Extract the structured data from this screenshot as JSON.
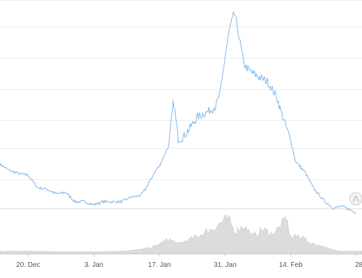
{
  "chart_data": {
    "type": "line",
    "title": "",
    "xlabel": "",
    "ylabel": "",
    "grid": true,
    "x_tick_labels": [
      "20. Dec",
      "3. Jan",
      "17. Jan",
      "31. Jan",
      "14. Feb",
      "28."
    ],
    "x_tick_dates": [
      "2022-12-20",
      "2023-01-03",
      "2023-01-17",
      "2023-01-31",
      "2023-02-14",
      "2023-02-28"
    ],
    "xlim": [
      "2022-12-14",
      "2023-02-28"
    ],
    "ylim": [
      0,
      100
    ],
    "series": [
      {
        "kind": "price",
        "x": [
          "2022-12-14",
          "2022-12-16",
          "2022-12-18",
          "2022-12-20",
          "2022-12-22",
          "2022-12-24",
          "2022-12-26",
          "2022-12-28",
          "2022-12-30",
          "2023-01-01",
          "2023-01-03",
          "2023-01-05",
          "2023-01-07",
          "2023-01-09",
          "2023-01-11",
          "2023-01-13",
          "2023-01-14",
          "2023-01-16",
          "2023-01-17",
          "2023-01-19",
          "2023-01-20",
          "2023-01-21",
          "2023-01-22",
          "2023-01-23",
          "2023-01-25",
          "2023-01-27",
          "2023-01-29",
          "2023-01-30",
          "2023-01-31",
          "2023-02-01",
          "2023-02-02",
          "2023-02-03",
          "2023-02-04",
          "2023-02-05",
          "2023-02-07",
          "2023-02-09",
          "2023-02-11",
          "2023-02-12",
          "2023-02-14",
          "2023-02-15",
          "2023-02-17",
          "2023-02-19",
          "2023-02-21",
          "2023-02-23",
          "2023-02-25",
          "2023-02-28"
        ],
        "y": [
          47.5,
          45.5,
          44.5,
          44,
          40,
          39.5,
          38,
          38.5,
          35.5,
          35.5,
          34.5,
          35.5,
          35.5,
          35.5,
          37,
          37.5,
          39.5,
          45,
          47,
          53.5,
          68,
          55.5,
          56,
          58,
          62.5,
          64,
          66,
          70.5,
          82,
          91,
          96,
          88,
          79.5,
          77.5,
          75.5,
          74,
          69,
          64,
          55,
          48.5,
          45,
          39.5,
          36,
          33.5,
          34,
          32
        ]
      },
      {
        "kind": "volume",
        "x": [
          "2022-12-14",
          "2022-12-20",
          "2022-12-27",
          "2023-01-03",
          "2023-01-08",
          "2023-01-12",
          "2023-01-14",
          "2023-01-16",
          "2023-01-17",
          "2023-01-19",
          "2023-01-21",
          "2023-01-23",
          "2023-01-25",
          "2023-01-27",
          "2023-01-29",
          "2023-01-31",
          "2023-02-01",
          "2023-02-02",
          "2023-02-04",
          "2023-02-06",
          "2023-02-08",
          "2023-02-10",
          "2023-02-12",
          "2023-02-13",
          "2023-02-14",
          "2023-02-16",
          "2023-02-18",
          "2023-02-20",
          "2023-02-22",
          "2023-02-25",
          "2023-02-28"
        ],
        "y": [
          2,
          2,
          1.5,
          1.5,
          2,
          3,
          4,
          6,
          8,
          12,
          8,
          11,
          14,
          18,
          22,
          28,
          27,
          18,
          23,
          14,
          20,
          16,
          23,
          30,
          13,
          15,
          9,
          7,
          4,
          2,
          2
        ]
      }
    ]
  }
}
